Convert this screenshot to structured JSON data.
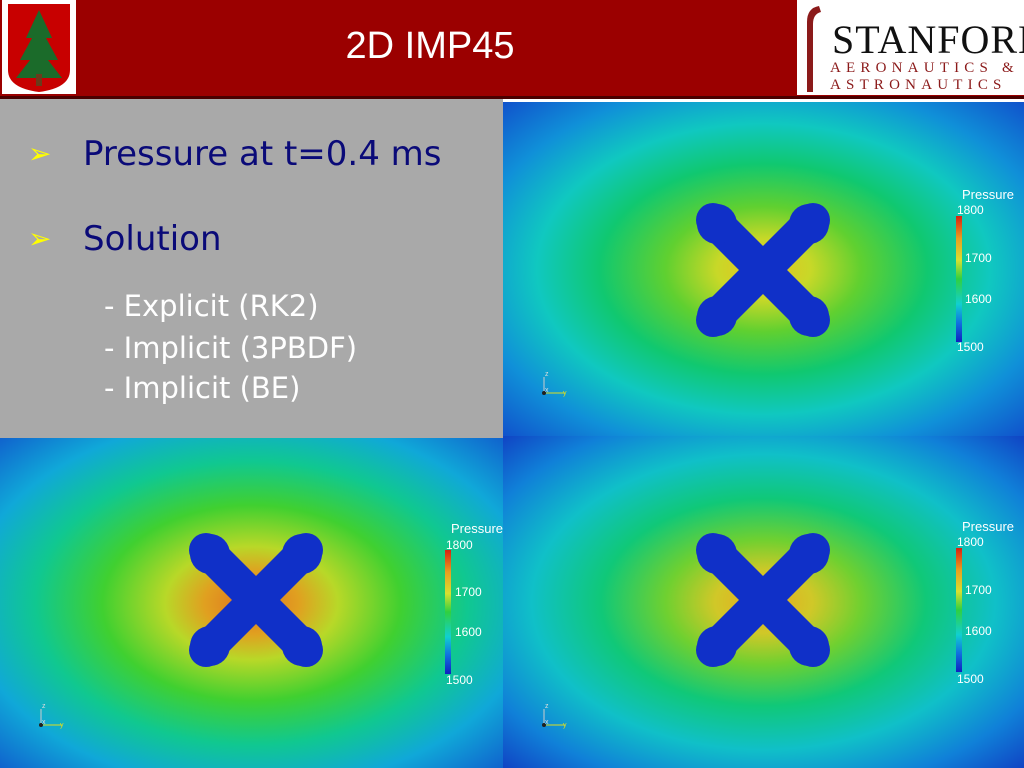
{
  "slide": {
    "title": "2D IMP45",
    "bullets": [
      {
        "text": "Pressure at t=0.4 ms"
      },
      {
        "text": "Solution"
      }
    ],
    "sub_items": [
      "- Explicit (RK2)",
      "- Implicit (3PBDF)",
      "- Implicit (BE)"
    ]
  },
  "logos": {
    "stanford_line1": "STANFORD",
    "stanford_line2": "AERONAUTICS &",
    "stanford_line3": "ASTRONAUTICS"
  },
  "plots": [
    {
      "legend_title": "Pressure",
      "ticks": [
        "1800",
        "1700",
        "1600",
        "1500"
      ],
      "axis_z": "z",
      "axis_x": "x",
      "axis_y": "y"
    },
    {
      "legend_title": "Pressure",
      "ticks": [
        "1800",
        "1700",
        "1600",
        "1500"
      ],
      "axis_z": "z",
      "axis_x": "x",
      "axis_y": "y"
    },
    {
      "legend_title": "Pressure",
      "ticks": [
        "1800",
        "1700",
        "1600",
        "1500"
      ],
      "axis_z": "z",
      "axis_x": "x",
      "axis_y": "y"
    }
  ],
  "colors": {
    "header_bg": "#9b0000",
    "text_panel_bg": "#a9a9a9",
    "bullet_color": "#ffff00",
    "main_text_color": "#0a0a78"
  }
}
